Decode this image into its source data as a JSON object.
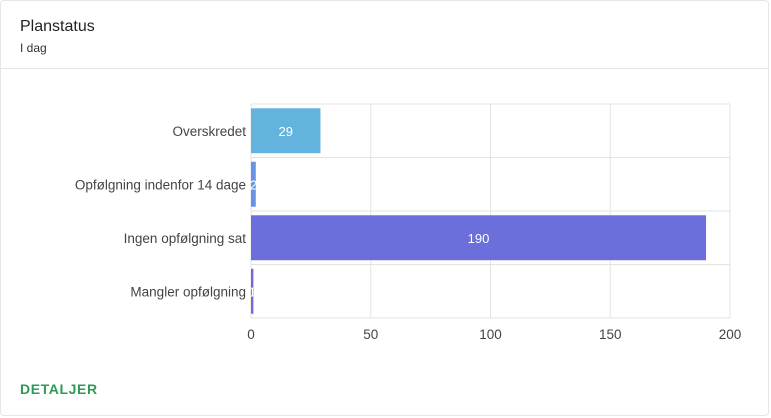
{
  "card": {
    "title": "Planstatus",
    "subtitle": "I dag",
    "details_label": "DETALJER",
    "details_color": "#2e9a57"
  },
  "chart_data": {
    "type": "bar",
    "orientation": "horizontal",
    "categories": [
      "Overskredet",
      "Opfølgning indenfor 14 dage",
      "Ingen opfølgning sat",
      "Mangler opfølgning"
    ],
    "values": [
      29,
      2,
      190,
      1
    ],
    "value_labels": [
      "29",
      "2",
      "190",
      "1"
    ],
    "colors": [
      "#62b4de",
      "#6693e6",
      "#6a6fdb",
      "#7d64dd"
    ],
    "xlim": [
      0,
      200
    ],
    "xticks": [
      0,
      50,
      100,
      150,
      200
    ],
    "xtick_labels": [
      "0",
      "50",
      "100",
      "150",
      "200"
    ],
    "grid": true,
    "legend": "none"
  }
}
